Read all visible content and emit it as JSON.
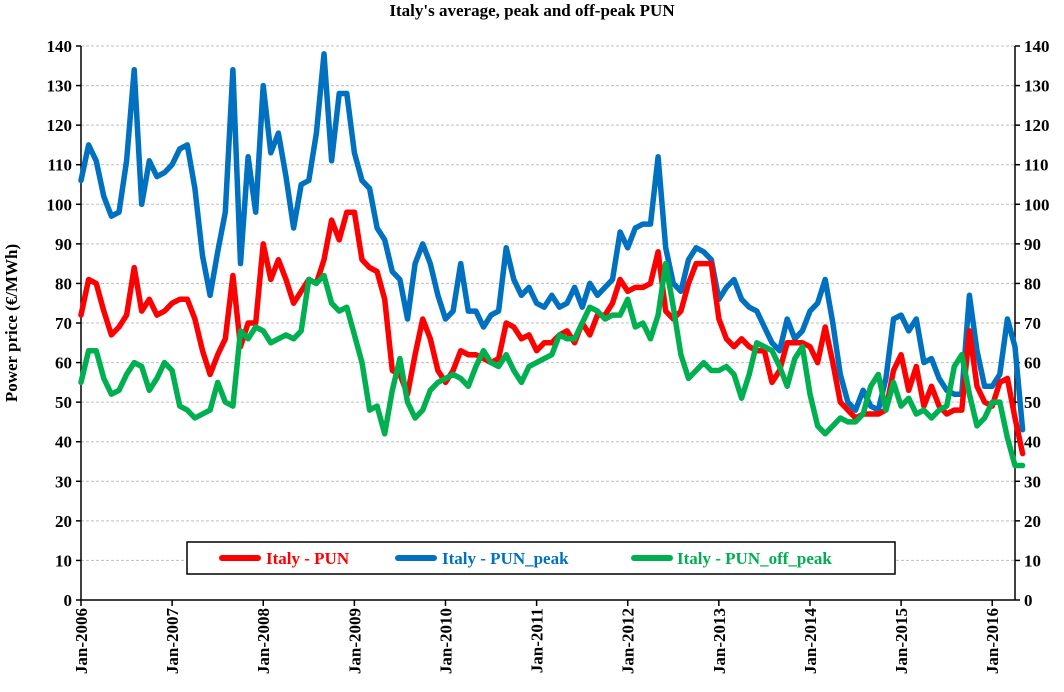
{
  "chart_data": {
    "type": "line",
    "title": "Italy's average, peak and off-peak PUN",
    "ylabel": "Power price (€/MWh)",
    "xlabel": "",
    "ylim": [
      0,
      140
    ],
    "y_ticks": [
      0,
      10,
      20,
      30,
      40,
      50,
      60,
      70,
      80,
      90,
      100,
      110,
      120,
      130,
      140
    ],
    "x_ticks": [
      "Jan-2006",
      "Jan-2007",
      "Jan-2008",
      "Jan-2009",
      "Jan-2010",
      "Jan-2011",
      "Jan-2012",
      "Jan-2013",
      "Jan-2014",
      "Jan-2015",
      "Jan-2016"
    ],
    "grid": true,
    "legend_position": "bottom-center",
    "start_month": "Jan-2006",
    "series": [
      {
        "name": "Italy - PUN",
        "color": "#ff0000",
        "values": [
          72,
          81,
          80,
          73,
          67,
          69,
          72,
          84,
          73,
          76,
          72,
          73,
          75,
          76,
          76,
          71,
          63,
          57,
          62,
          66,
          82,
          64,
          70,
          70,
          90,
          81,
          86,
          81,
          75,
          78,
          81,
          80,
          86,
          96,
          91,
          98,
          98,
          86,
          84,
          83,
          76,
          58,
          57,
          52,
          62,
          71,
          66,
          58,
          55,
          58,
          63,
          62,
          62,
          61,
          60,
          61,
          70,
          69,
          66,
          67,
          63,
          65,
          65,
          67,
          68,
          65,
          70,
          67,
          72,
          72,
          75,
          81,
          78,
          79,
          79,
          80,
          88,
          73,
          71,
          73,
          80,
          85,
          85,
          85,
          71,
          66,
          64,
          66,
          64,
          63,
          63,
          55,
          58,
          65,
          65,
          65,
          64,
          60,
          69,
          60,
          50,
          48,
          46,
          47,
          47,
          47,
          48,
          58,
          62,
          53,
          59,
          49,
          54,
          49,
          47,
          48,
          48,
          68,
          54,
          50,
          49,
          55,
          56,
          46,
          37
        ]
      },
      {
        "name": "Italy - PUN_peak",
        "color": "#0070c0",
        "values": [
          106,
          115,
          111,
          102,
          97,
          98,
          111,
          134,
          100,
          111,
          107,
          108,
          110,
          114,
          115,
          104,
          87,
          77,
          88,
          98,
          134,
          85,
          112,
          98,
          130,
          113,
          118,
          107,
          94,
          105,
          106,
          118,
          138,
          111,
          128,
          128,
          113,
          106,
          104,
          94,
          91,
          83,
          81,
          71,
          85,
          90,
          85,
          77,
          71,
          73,
          85,
          73,
          73,
          69,
          72,
          73,
          89,
          81,
          77,
          79,
          75,
          74,
          77,
          74,
          75,
          79,
          74,
          80,
          77,
          79,
          81,
          93,
          89,
          94,
          95,
          95,
          112,
          89,
          80,
          78,
          86,
          89,
          88,
          86,
          76,
          79,
          81,
          76,
          74,
          73,
          69,
          65,
          63,
          71,
          66,
          68,
          73,
          75,
          81,
          70,
          57,
          50,
          48,
          53,
          49,
          48,
          56,
          71,
          72,
          68,
          71,
          60,
          61,
          56,
          53,
          52,
          52,
          77,
          63,
          54,
          54,
          57,
          71,
          64,
          43
        ]
      },
      {
        "name": "Italy - PUN_off_peak",
        "color": "#00b050",
        "values": [
          55,
          63,
          63,
          56,
          52,
          53,
          57,
          60,
          59,
          53,
          56,
          60,
          58,
          49,
          48,
          46,
          47,
          48,
          55,
          50,
          49,
          68,
          66,
          69,
          68,
          65,
          66,
          67,
          66,
          68,
          81,
          80,
          82,
          75,
          73,
          74,
          67,
          60,
          48,
          49,
          42,
          53,
          61,
          50,
          46,
          48,
          53,
          55,
          56,
          57,
          56,
          54,
          59,
          63,
          60,
          59,
          62,
          58,
          55,
          59,
          60,
          61,
          62,
          67,
          66,
          66,
          70,
          74,
          73,
          71,
          72,
          72,
          76,
          69,
          70,
          66,
          72,
          85,
          74,
          62,
          56,
          58,
          60,
          58,
          58,
          59,
          57,
          51,
          57,
          65,
          64,
          63,
          59,
          54,
          61,
          64,
          52,
          44,
          42,
          44,
          46,
          45,
          45,
          47,
          54,
          57,
          48,
          55,
          49,
          51,
          47,
          48,
          46,
          48,
          49,
          59,
          62,
          52,
          44,
          46,
          50,
          50,
          41,
          34,
          34
        ]
      }
    ]
  }
}
